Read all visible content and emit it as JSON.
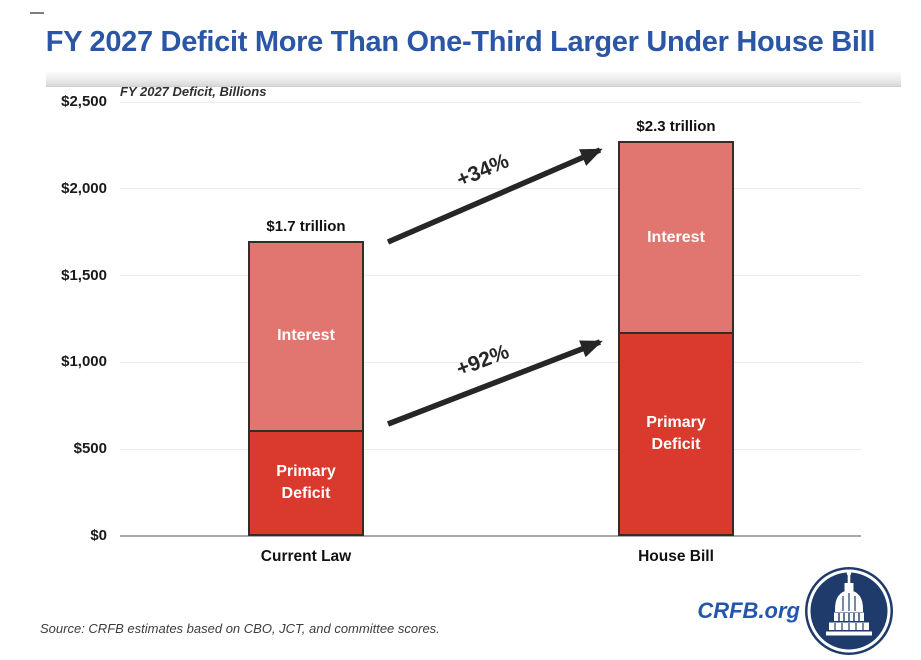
{
  "title": "FY 2027 Deficit More Than One-Third Larger Under House Bill",
  "chart_data": {
    "type": "bar",
    "stacked": true,
    "title": "FY 2027 Deficit More Than One-Third Larger Under House Bill",
    "subtitle": "FY 2027 Deficit, Billions",
    "categories": [
      "Current Law",
      "House Bill"
    ],
    "series": [
      {
        "name": "Primary Deficit",
        "values": [
          610,
          1175
        ],
        "color": "#da392e"
      },
      {
        "name": "Interest",
        "values": [
          1090,
          1100
        ],
        "color": "#e0766f"
      }
    ],
    "totals_billions": [
      1700,
      2275
    ],
    "total_labels": [
      "$1.7 trillion",
      "$2.3 trillion"
    ],
    "annotations": [
      {
        "label": "+34%",
        "points": "total deficit: Current Law to House Bill"
      },
      {
        "label": "+92%",
        "points": "primary deficit: Current Law to House Bill"
      }
    ],
    "y_ticks": [
      {
        "value": 0,
        "label": "$0"
      },
      {
        "value": 500,
        "label": "$500"
      },
      {
        "value": 1000,
        "label": "$1,000"
      },
      {
        "value": 1500,
        "label": "$1,500"
      },
      {
        "value": 2000,
        "label": "$2,000"
      },
      {
        "value": 2500,
        "label": "$2,500"
      }
    ],
    "ylim": [
      0,
      2500
    ],
    "grid": true,
    "legend_position": "none"
  },
  "colors": {
    "title_blue": "#2b56a5",
    "primary_deficit_red": "#da392e",
    "interest_salmon": "#e0766f",
    "bar_border": "#372b28",
    "arrow_black": "#262626",
    "crfb_blue": "#2456ad",
    "logo_navy": "#1e3b6b"
  },
  "source_note": "Source: CRFB estimates based on CBO, JCT, and committee scores.",
  "branding": {
    "site_label": "CRFB.org",
    "logo_icon": "capitol-dome-icon"
  }
}
